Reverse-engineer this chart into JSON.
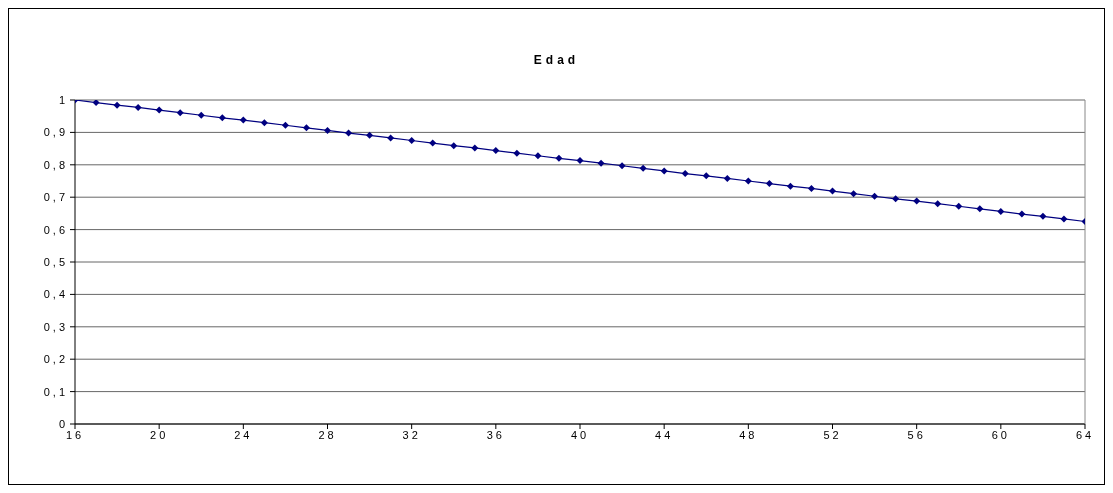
{
  "chart_data": {
    "type": "line",
    "title": "Edad",
    "x": [
      16,
      17,
      18,
      19,
      20,
      21,
      22,
      23,
      24,
      25,
      26,
      27,
      28,
      29,
      30,
      31,
      32,
      33,
      34,
      35,
      36,
      37,
      38,
      39,
      40,
      41,
      42,
      43,
      44,
      45,
      46,
      47,
      48,
      49,
      50,
      51,
      52,
      53,
      54,
      55,
      56,
      57,
      58,
      59,
      60,
      61,
      62,
      63,
      64
    ],
    "series": [
      {
        "color": "#000080",
        "values": [
          1,
          0.992,
          0.984,
          0.977,
          0.969,
          0.961,
          0.953,
          0.945,
          0.938,
          0.93,
          0.922,
          0.914,
          0.906,
          0.898,
          0.891,
          0.883,
          0.875,
          0.867,
          0.859,
          0.852,
          0.844,
          0.836,
          0.828,
          0.82,
          0.813,
          0.805,
          0.797,
          0.789,
          0.781,
          0.773,
          0.766,
          0.758,
          0.75,
          0.742,
          0.734,
          0.727,
          0.719,
          0.711,
          0.703,
          0.695,
          0.688,
          0.68,
          0.672,
          0.664,
          0.656,
          0.648,
          0.641,
          0.633,
          0.625
        ]
      }
    ],
    "xlim": [
      16,
      64
    ],
    "xticks": [
      16,
      20,
      24,
      28,
      32,
      36,
      40,
      44,
      48,
      52,
      56,
      60,
      64
    ],
    "ylim": [
      0,
      1
    ],
    "yticks": [
      0,
      {
        "value": 0.1,
        "label": "0,1"
      },
      {
        "value": 0.2,
        "label": "0,2"
      },
      {
        "value": 0.3,
        "label": "0,3"
      },
      {
        "value": 0.4,
        "label": "0,4"
      },
      {
        "value": 0.5,
        "label": "0,5"
      },
      {
        "value": 0.6,
        "label": "0,6"
      },
      {
        "value": 0.7,
        "label": "0,7"
      },
      {
        "value": 0.8,
        "label": "0,8"
      },
      {
        "value": 0.9,
        "label": "0,9"
      },
      1
    ],
    "grid": "y",
    "legend": false,
    "marker": "diamond",
    "line_style": "solid"
  }
}
